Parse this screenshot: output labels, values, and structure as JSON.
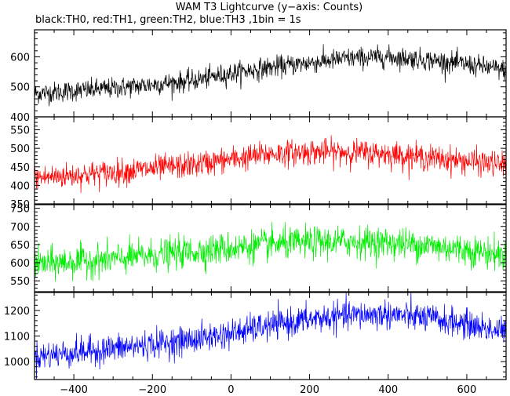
{
  "title": "WAM T3 Lightcurve (y−axis: Counts)",
  "subtitle": "black:TH0, red:TH1, green:TH2, blue:TH3 ,1bin = 1s",
  "chart_data": {
    "type": "line",
    "title": "WAM T3 Lightcurve (y−axis: Counts)",
    "subtitle": "black:TH0, red:TH1, green:TH2, blue:TH3 ,1bin = 1s",
    "xlabel": "",
    "ylabel": "",
    "bin_seconds": 1,
    "xlim": [
      -500,
      700
    ],
    "xticks": [
      -400,
      -200,
      0,
      200,
      400,
      600
    ],
    "grid": false,
    "panels": [
      {
        "name": "TH0",
        "color": "#000000",
        "ylim": [
          400,
          690
        ],
        "yticks": [
          400,
          500,
          600
        ],
        "trend": {
          "x": [
            -500,
            -300,
            -100,
            0,
            100,
            200,
            300,
            400,
            500,
            600,
            700
          ],
          "y": [
            478,
            495,
            520,
            545,
            565,
            580,
            595,
            600,
            590,
            575,
            555
          ]
        },
        "noise_amplitude": 28
      },
      {
        "name": "TH1",
        "color": "#ff0000",
        "ylim": [
          350,
          585
        ],
        "yticks": [
          350,
          400,
          450,
          500,
          550
        ],
        "trend": {
          "x": [
            -500,
            -300,
            -100,
            0,
            100,
            200,
            300,
            400,
            500,
            600,
            700
          ],
          "y": [
            420,
            435,
            455,
            470,
            485,
            490,
            490,
            485,
            475,
            465,
            455
          ]
        },
        "noise_amplitude": 28
      },
      {
        "name": "TH2",
        "color": "#00ee00",
        "ylim": [
          520,
          760
        ],
        "yticks": [
          550,
          600,
          650,
          700,
          750
        ],
        "trend": {
          "x": [
            -500,
            -300,
            -100,
            0,
            100,
            200,
            300,
            400,
            500,
            600,
            700
          ],
          "y": [
            595,
            610,
            630,
            640,
            650,
            655,
            658,
            655,
            648,
            635,
            620
          ]
        },
        "noise_amplitude": 35
      },
      {
        "name": "TH3",
        "color": "#0000ff",
        "ylim": [
          930,
          1270
        ],
        "yticks": [
          1000,
          1100,
          1200
        ],
        "trend": {
          "x": [
            -500,
            -300,
            -100,
            0,
            100,
            200,
            300,
            400,
            500,
            600,
            700
          ],
          "y": [
            1020,
            1050,
            1085,
            1110,
            1140,
            1165,
            1180,
            1185,
            1170,
            1145,
            1115
          ]
        },
        "noise_amplitude": 45
      }
    ]
  }
}
